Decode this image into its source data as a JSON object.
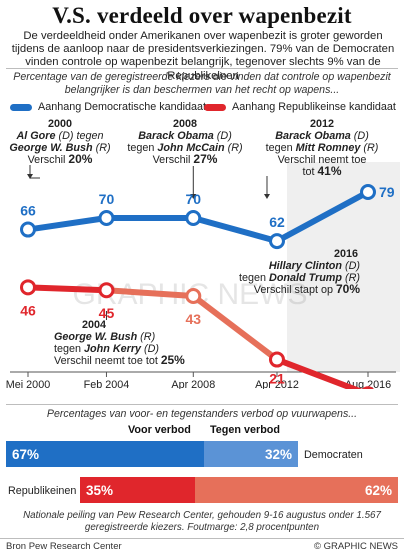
{
  "title": "V.S. verdeeld over wapenbezit",
  "intro": "De verdeeldheid onder Amerikanen over wapenbezit is groter geworden tijdens de aanloop naar de presidentsverkiezingen. 79% van de Democraten vinden controle op wapenbezit belangrijk, tegenover slechts 9% van de Republikeinen",
  "chart_subtitle": "Percentage van de geregistreerde kiezers die vinden dat controle op wapenbezit belangrijker is dan beschermen van het recht op wapens...",
  "colors": {
    "dem": "#1f6fc5",
    "rep": "#e0262c",
    "dem_light": "#5b93d6",
    "rep_light": "#e6705a",
    "marker_fill": "#ffffff"
  },
  "legend": {
    "dem": "Aanhang Democratische kandidaat",
    "rep": "Aanhang Republikeinse kandidaat"
  },
  "annotations": {
    "a2000": {
      "year": "2000",
      "line1_bold": "Al Gore",
      "line1_rest": " (D) tegen",
      "line2_bold": "George W. Bush",
      "line2_rest": " (R)",
      "line3_pre": "Verschil ",
      "line3_bold": "20%"
    },
    "a2008": {
      "year": "2008",
      "line1_bold": "Barack Obama",
      "line1_rest": " (D)",
      "line2_pre": "tegen ",
      "line2_bold": "John McCain",
      "line2_rest": " (R)",
      "line3_pre": "Verschil ",
      "line3_bold": "27%"
    },
    "a2012": {
      "year": "2012",
      "line1_bold": "Barack Obama",
      "line1_rest": " (D)",
      "line2_pre": "tegen ",
      "line2_bold": "Mitt Romney",
      "line2_rest": " (R)",
      "line3_pre": "Verschil neemt toe",
      "line4_pre": "tot ",
      "line4_bold": "41%"
    },
    "a2004": {
      "year": "2004",
      "line1_bold": "George W. Bush",
      "line1_rest": " (R)",
      "line2_pre": "tegen ",
      "line2_bold": "John Kerry",
      "line2_rest": " (D)",
      "line3_pre": "Verschil neemt toe tot ",
      "line3_bold": "25%"
    },
    "a2016": {
      "year": "2016",
      "line1_bold": "Hillary Clinton",
      "line1_rest": " (D)",
      "line2_pre": "tegen ",
      "line2_bold": "Donald Trump",
      "line2_rest": " (R)",
      "line3_pre": "Verschil stapt op ",
      "line3_bold": "70%"
    }
  },
  "watermark": "GRAPHIC NEWS",
  "chart_data": [
    {
      "type": "line",
      "title": "Percentage van de geregistreerde kiezers die vinden dat controle op wapenbezit belangrijker is dan beschermen van het recht op wapens...",
      "categories": [
        "Mei 2000",
        "Feb 2004",
        "Apr 2008",
        "Apr 2012",
        "Aug 2016"
      ],
      "x_positions": [
        0,
        3.75,
        7.9,
        11.9,
        16.25
      ],
      "series": [
        {
          "name": "Aanhang Democratische kandidaat",
          "values": [
            66,
            70,
            null,
            62,
            79
          ],
          "labels": [
            "66",
            "70",
            "70",
            "62",
            "79"
          ],
          "key_points": [
            [
              0,
              66
            ],
            [
              3.75,
              70
            ],
            [
              7.9,
              70
            ],
            [
              11.9,
              62
            ],
            [
              16.25,
              79
            ]
          ]
        },
        {
          "name": "Aanhang Republikeinse kandidaat",
          "values": [
            46,
            45,
            43,
            21,
            9
          ],
          "labels": [
            "46",
            "45",
            "43",
            "21",
            "9"
          ],
          "key_points": [
            [
              0,
              46
            ],
            [
              3.75,
              45
            ],
            [
              7.9,
              43
            ],
            [
              11.9,
              21
            ],
            [
              16.25,
              9
            ]
          ]
        }
      ],
      "ylim": [
        0,
        90
      ],
      "grid": false,
      "legend": "top"
    },
    {
      "type": "bar",
      "title": "Percentages van voor- en tegenstanders verbod op vuurwapens...",
      "stacked": true,
      "orientation": "horizontal",
      "categories": [
        "Democraten",
        "Republikeinen"
      ],
      "series": [
        {
          "name": "Voor verbod",
          "values": [
            67,
            35
          ],
          "labels": [
            "67%",
            "35%"
          ]
        },
        {
          "name": "Tegen verbod",
          "values": [
            32,
            62
          ],
          "labels": [
            "32%",
            "62%"
          ]
        }
      ]
    }
  ],
  "bars_subtitle": "Percentages van voor- en tegenstanders verbod op vuurwapens...",
  "note": "Nationale peiling van Pew Research Center, gehouden 9-16 augustus onder 1.567 geregistreerde kiezers. Foutmarge: 2,8 procentpunten",
  "source": "Bron Pew Research Center",
  "credit": "© GRAPHIC NEWS"
}
